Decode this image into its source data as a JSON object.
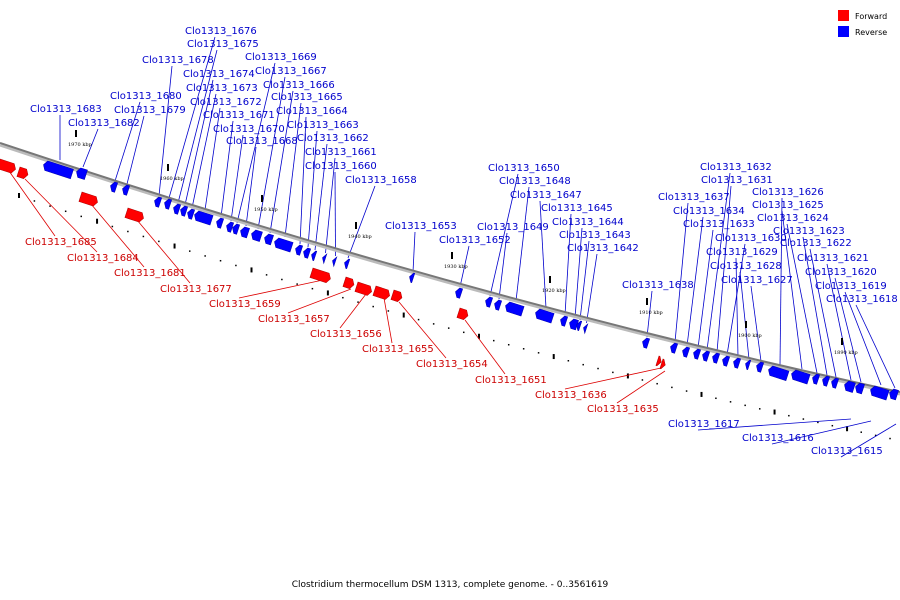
{
  "caption": "Clostridium thermocellum DSM 1313, complete genome. - 0..3561619",
  "legend": [
    {
      "label": "Forward",
      "color": "#ff0000"
    },
    {
      "label": "Reverse",
      "color": "#0000ff"
    }
  ],
  "colors": {
    "forward_fill": "#ff0000",
    "forward_line": "#dd0000",
    "reverse_fill": "#0000ff",
    "reverse_line": "#0000cc",
    "backbone": "#777777"
  },
  "kbp_marks": [
    "1970 kbp",
    "1960 kbp",
    "1950 kbp",
    "1940 kbp",
    "1930 kbp",
    "1920 kbp",
    "1910 kbp",
    "1900 kbp",
    "1890 kbp"
  ],
  "reverse_genes": [
    "Clo1313_1683",
    "Clo1313_1682",
    "Clo1313_1680",
    "Clo1313_1679",
    "Clo1313_1678",
    "Clo1313_1676",
    "Clo1313_1675",
    "Clo1313_1674",
    "Clo1313_1673",
    "Clo1313_1672",
    "Clo1313_1671",
    "Clo1313_1670",
    "Clo1313_1669",
    "Clo1313_1668",
    "Clo1313_1667",
    "Clo1313_1666",
    "Clo1313_1665",
    "Clo1313_1664",
    "Clo1313_1663",
    "Clo1313_1662",
    "Clo1313_1661",
    "Clo1313_1660",
    "Clo1313_1658",
    "Clo1313_1653",
    "Clo1313_1652",
    "Clo1313_1650",
    "Clo1313_1649",
    "Clo1313_1648",
    "Clo1313_1647",
    "Clo1313_1645",
    "Clo1313_1644",
    "Clo1313_1643",
    "Clo1313_1642",
    "Clo1313_1638",
    "Clo1313_1637",
    "Clo1313_1634",
    "Clo1313_1633",
    "Clo1313_1632",
    "Clo1313_1631",
    "Clo1313_1630",
    "Clo1313_1629",
    "Clo1313_1628",
    "Clo1313_1627",
    "Clo1313_1626",
    "Clo1313_1625",
    "Clo1313_1624",
    "Clo1313_1623",
    "Clo1313_1622",
    "Clo1313_1621",
    "Clo1313_1620",
    "Clo1313_1619",
    "Clo1313_1618",
    "Clo1313_1617",
    "Clo1313_1616",
    "Clo1313_1615"
  ],
  "forward_genes": [
    "Clo1313_1685",
    "Clo1313_1684",
    "Clo1313_1681",
    "Clo1313_1677",
    "Clo1313_1659",
    "Clo1313_1657",
    "Clo1313_1656",
    "Clo1313_1655",
    "Clo1313_1654",
    "Clo1313_1651",
    "Clo1313_1636",
    "Clo1313_1635"
  ]
}
